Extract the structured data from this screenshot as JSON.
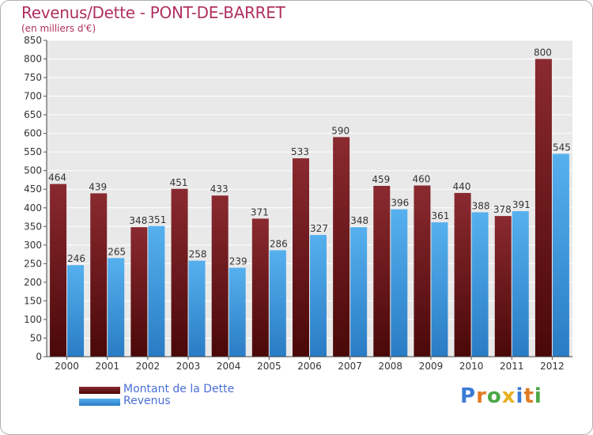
{
  "title": "Revenus/Dette - PONT-DE-BARRET",
  "subtitle": "(en milliers d'€)",
  "logo": {
    "text": "Proxiti",
    "colors": [
      "#3a7bd5",
      "#e07a20",
      "#4aa844",
      "#e8b020",
      "#3a7bd5",
      "#e07a20",
      "#4aa844"
    ]
  },
  "chart_data": {
    "type": "bar",
    "categories": [
      "2000",
      "2001",
      "2002",
      "2003",
      "2004",
      "2005",
      "2006",
      "2007",
      "2008",
      "2009",
      "2010",
      "2011",
      "2012"
    ],
    "series": [
      {
        "name": "Montant de la Dette",
        "color": "#7a1e24",
        "values": [
          464,
          439,
          348,
          451,
          433,
          371,
          533,
          590,
          459,
          460,
          440,
          378,
          800
        ]
      },
      {
        "name": "Revenus",
        "color": "#3f9ee0",
        "values": [
          246,
          265,
          351,
          258,
          239,
          286,
          327,
          348,
          396,
          361,
          388,
          391,
          545
        ]
      }
    ],
    "ylim": [
      0,
      850
    ],
    "yticks": [
      0,
      50,
      100,
      150,
      200,
      250,
      300,
      350,
      400,
      450,
      500,
      550,
      600,
      650,
      700,
      750,
      800,
      850
    ],
    "grid": true,
    "xlabel": "",
    "ylabel": ""
  }
}
